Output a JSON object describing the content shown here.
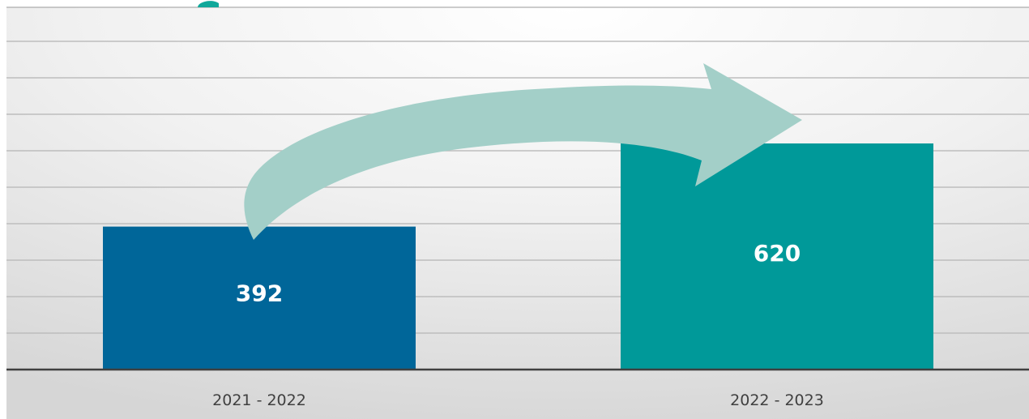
{
  "chart_data": {
    "type": "bar",
    "title": "",
    "xlabel": "",
    "ylabel": "",
    "categories": [
      "2021 - 2022",
      "2022 - 2023"
    ],
    "values": [
      392,
      620
    ],
    "data_labels": [
      "392",
      "620"
    ],
    "ylim": [
      0,
      900
    ],
    "grid": true,
    "legend": "none",
    "colors": {
      "bars": [
        "#006699",
        "#009999"
      ],
      "arrow": "#a3cfc8",
      "title_fragment": "#10a89a",
      "baseline": "#404040",
      "gridline": "#bdbdbd"
    },
    "annotations": [
      "curved-arrow-increase"
    ]
  }
}
